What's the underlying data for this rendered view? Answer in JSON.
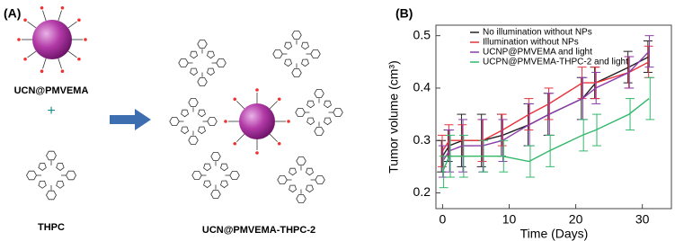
{
  "panel_a": {
    "label": "(A)",
    "particle": "UCN@PMVEMA",
    "plus": "+",
    "dye": "THPC",
    "product": "UCN@PMVEMA-THPC-2"
  },
  "chart_data": {
    "type": "line",
    "panel_label": "(B)",
    "x_label": "Time (Days)",
    "y_label": "Tumor volume (cm³)",
    "x": [
      0,
      1,
      3,
      6,
      9,
      13,
      16,
      21,
      23,
      28,
      31
    ],
    "xlim": [
      -1,
      34.5
    ],
    "xticks": [
      0,
      10,
      20,
      30
    ],
    "ylim": [
      0.17,
      0.52
    ],
    "yticks": [
      0.2,
      0.3,
      0.4,
      0.5
    ],
    "legend": "upper-left",
    "series": [
      {
        "name": "No illumination without NPs",
        "color": "#222222",
        "values": [
          0.27,
          0.29,
          0.3,
          0.3,
          0.31,
          0.33,
          0.35,
          0.38,
          0.41,
          0.44,
          0.46
        ],
        "errors": [
          0.03,
          0.03,
          0.05,
          0.05,
          0.04,
          0.04,
          0.04,
          0.04,
          0.03,
          0.03,
          0.03
        ]
      },
      {
        "name": "Illumination without NPs",
        "color": "#e8333a",
        "values": [
          0.28,
          0.3,
          0.3,
          0.3,
          0.32,
          0.35,
          0.37,
          0.41,
          0.41,
          0.43,
          0.45
        ],
        "errors": [
          0.03,
          0.03,
          0.03,
          0.04,
          0.03,
          0.03,
          0.03,
          0.03,
          0.03,
          0.03,
          0.03
        ]
      },
      {
        "name": "UCNP@PMVEMA and light",
        "color": "#8a3ca8",
        "values": [
          0.26,
          0.28,
          0.29,
          0.29,
          0.3,
          0.33,
          0.35,
          0.38,
          0.4,
          0.43,
          0.47
        ],
        "errors": [
          0.03,
          0.04,
          0.05,
          0.05,
          0.04,
          0.04,
          0.04,
          0.04,
          0.03,
          0.03,
          0.03
        ]
      },
      {
        "name": "UCPN@PMVEMA-THPC-2 and light",
        "color": "#33b86a",
        "values": [
          0.24,
          0.27,
          0.27,
          0.27,
          0.27,
          0.26,
          0.28,
          0.31,
          0.32,
          0.35,
          0.38
        ],
        "errors": [
          0.03,
          0.04,
          0.04,
          0.03,
          0.03,
          0.03,
          0.03,
          0.03,
          0.03,
          0.03,
          0.04
        ]
      }
    ]
  }
}
